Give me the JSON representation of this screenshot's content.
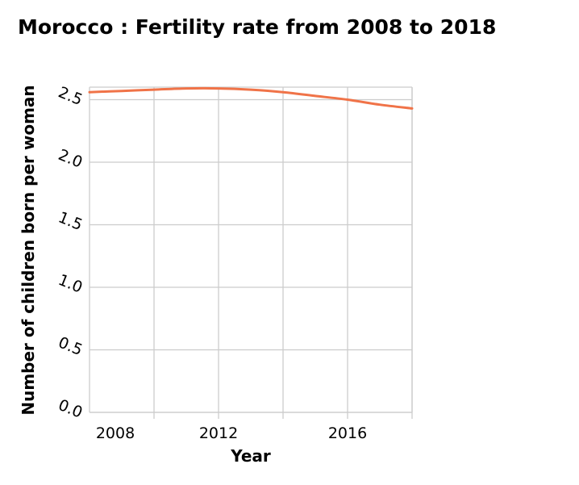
{
  "chart_data": {
    "type": "line",
    "title": "Morocco : Fertility rate from 2008 to 2018",
    "xlabel": "Year",
    "ylabel": "Number of children born per woman",
    "xlim": [
      2008,
      2018
    ],
    "ylim": [
      0.0,
      2.6
    ],
    "x_ticks": [
      2008,
      2012,
      2016
    ],
    "x_tick_labels": [
      "2008",
      "2012",
      "2016"
    ],
    "y_ticks": [
      0.0,
      0.5,
      1.0,
      1.5,
      2.0,
      2.5
    ],
    "y_tick_labels": [
      "0.0",
      "0.5",
      "1.0",
      "1.5",
      "2.0",
      "2.5"
    ],
    "x_grid": [
      2010,
      2012,
      2014,
      2016,
      2018
    ],
    "grid": true,
    "legend": "none",
    "series": [
      {
        "color": "#f07348",
        "x": [
          2008,
          2009,
          2010,
          2011,
          2012,
          2013,
          2014,
          2015,
          2016,
          2017,
          2018
        ],
        "values": [
          2.56,
          2.57,
          2.58,
          2.59,
          2.59,
          2.58,
          2.56,
          2.53,
          2.5,
          2.46,
          2.43
        ]
      }
    ]
  }
}
